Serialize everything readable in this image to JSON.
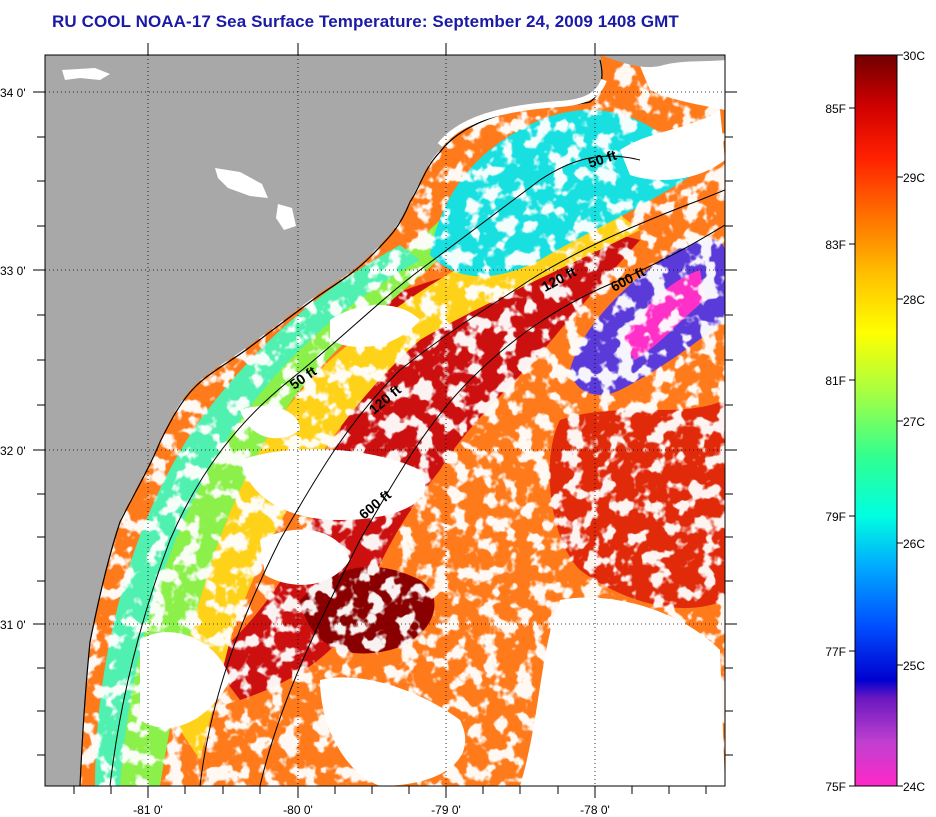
{
  "title": "RU COOL  NOAA-17  Sea Surface Temperature:  September 24, 2009 1408 GMT",
  "map": {
    "lat_labels": [
      "34 0'",
      "33 0'",
      "32 0'",
      "31 0'"
    ],
    "lon_labels": [
      "-81 0'",
      "-80 0'",
      "-79 0'",
      "-78 0'"
    ],
    "contour_labels": [
      "50 ft",
      "120 ft",
      "600 ft",
      "50 ft",
      "120 ft",
      "600 ft"
    ],
    "colors": {
      "land": "#a8a8a8",
      "cloud": "#ffffff"
    }
  },
  "colorbar": {
    "celsius_labels": [
      "30C",
      "29C",
      "28C",
      "27C",
      "26C",
      "25C",
      "24C"
    ],
    "fahrenheit_labels": [
      "85F",
      "83F",
      "81F",
      "79F",
      "77F",
      "75F"
    ],
    "colors": [
      "#7a0000",
      "#d40000",
      "#ff6a00",
      "#ffd000",
      "#ffff00",
      "#a0ff50",
      "#00ffc8",
      "#00c8ff",
      "#0050ff",
      "#0000c8",
      "#8000c0",
      "#ff28c8"
    ]
  }
}
